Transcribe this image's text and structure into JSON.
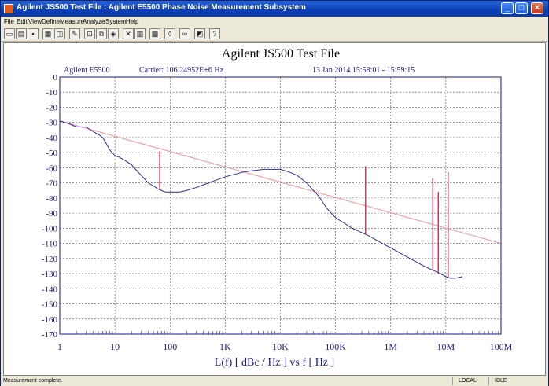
{
  "window": {
    "title": "Agilent JS500 Test File : Agilent E5500 Phase Noise Measurement Subsystem",
    "controls": {
      "minimize": "_",
      "maximize": "□",
      "close": "×"
    }
  },
  "menu": [
    "File",
    "Edit",
    "View",
    "Define",
    "Measure",
    "Analyze",
    "System",
    "Help"
  ],
  "toolbar": {
    "icons": [
      "new-file-icon",
      "open-folder-icon",
      "save-icon",
      "print-icon",
      "print-preview-icon",
      "draw-icon",
      "zoom-icon",
      "copy-icon",
      "marker-icon",
      "delete-icon",
      "table-icon",
      "grid-icon",
      "marker-peak-icon",
      "scale-icon",
      "chart-icon",
      "help-icon"
    ],
    "colors": {
      "face": "#ece9d8"
    }
  },
  "chart_data": {
    "type": "line",
    "title": "Agilent JS500 Test File",
    "header_left": "Agilent E5500",
    "header_carrier": "Carrier: 106.24952E+6 Hz",
    "header_date": "13 Jan 2014  15:58:01 - 15:59:15",
    "xlabel": "L(f)  [ dBc / Hz ]  vs  f  [ Hz ]",
    "x_scale": "log",
    "xlim": [
      1,
      100000000
    ],
    "x_ticks": [
      1,
      10,
      100,
      1000,
      10000,
      100000,
      1000000,
      10000000,
      100000000
    ],
    "x_tick_labels": [
      "1",
      "10",
      "100",
      "1K",
      "10K",
      "100K",
      "1M",
      "10M",
      "100M"
    ],
    "ylim": [
      -170,
      0
    ],
    "y_ticks": [
      0,
      -10,
      -20,
      -30,
      -40,
      -50,
      -60,
      -70,
      -80,
      -90,
      -100,
      -110,
      -120,
      -130,
      -140,
      -150,
      -160,
      -170
    ],
    "grid": true,
    "colors": {
      "noise": "#2c2c9a",
      "spur": "#c0305a",
      "limit": "#f0a0a0"
    },
    "series": [
      {
        "x": [
          1,
          1.5,
          2,
          3,
          4,
          5,
          6,
          7,
          8,
          10,
          12,
          15,
          20,
          25,
          30,
          40,
          50,
          60,
          70,
          80,
          100,
          150,
          200,
          300,
          500,
          700,
          1000,
          2000,
          3000,
          5000,
          7000,
          10000,
          15000,
          20000,
          30000,
          50000,
          70000,
          100000,
          200000,
          400000,
          700000,
          1000000,
          2000000,
          4000000,
          6000000,
          8000000,
          10000000,
          12000000,
          15000000,
          20000000
        ],
        "y": [
          -29,
          -31,
          -33,
          -33,
          -36,
          -38,
          -40,
          -44,
          -48,
          -52,
          -53,
          -55,
          -58,
          -62,
          -65,
          -70,
          -72,
          -74,
          -75,
          -76,
          -76,
          -76,
          -75,
          -73,
          -70,
          -68,
          -66,
          -63,
          -62,
          -61,
          -61,
          -61,
          -63,
          -65,
          -70,
          -79,
          -87,
          -93,
          -100,
          -105,
          -110,
          -113,
          -119,
          -125,
          -128,
          -130,
          -132,
          -133,
          -133,
          -132
        ]
      },
      {
        "x": [
          1,
          100000000
        ],
        "y": [
          -29,
          -110
        ]
      }
    ],
    "spurs": [
      {
        "x": 65,
        "y": -49
      },
      {
        "x": 350000,
        "y": -59
      },
      {
        "x": 5800000,
        "y": -67
      },
      {
        "x": 7300000,
        "y": -76
      },
      {
        "x": 11000000,
        "y": -63
      }
    ]
  },
  "status": {
    "message": "Measurement complete.",
    "mode": "LOCAL",
    "state": "IDLE"
  }
}
